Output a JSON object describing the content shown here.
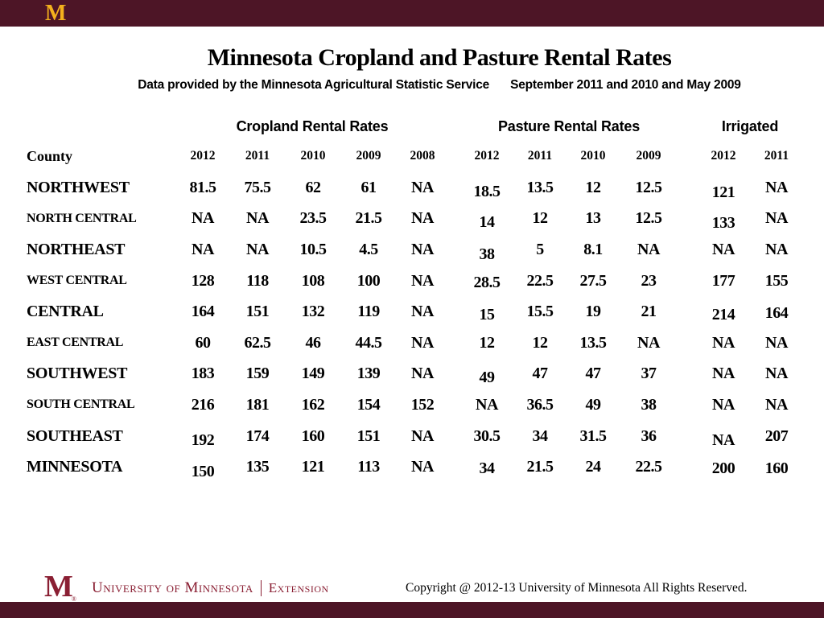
{
  "slide": {
    "title": "Minnesota Cropland and Pasture Rental Rates",
    "subtitle_left": "Data provided by the Minnesota Agricultural Statistic Service",
    "subtitle_right": "September 2011 and 2010 and May 2009"
  },
  "table": {
    "county_header": "County",
    "sections": [
      {
        "label": "Cropland Rental Rates",
        "years": [
          "2012",
          "2011",
          "2010",
          "2009",
          "2008"
        ]
      },
      {
        "label": "Pasture Rental Rates",
        "years": [
          "2012",
          "2011",
          "2010",
          "2009"
        ]
      },
      {
        "label": "Irrigated",
        "years": [
          "2012",
          "2011"
        ]
      }
    ],
    "rows": [
      {
        "county": "NORTHWEST",
        "size": "large",
        "cropland": [
          "81.5",
          "75.5",
          "62",
          "61",
          "NA"
        ],
        "pasture": [
          "18.5",
          "13.5",
          "12",
          "12.5"
        ],
        "irrigated": [
          "121",
          "NA"
        ]
      },
      {
        "county": "NORTH CENTRAL",
        "size": "small",
        "cropland": [
          "NA",
          "NA",
          "23.5",
          "21.5",
          "NA"
        ],
        "pasture": [
          "14",
          "12",
          "13",
          "12.5"
        ],
        "irrigated": [
          "133",
          "NA"
        ]
      },
      {
        "county": "NORTHEAST",
        "size": "large",
        "cropland": [
          "NA",
          "NA",
          "10.5",
          "4.5",
          "NA"
        ],
        "pasture": [
          "38",
          "5",
          "8.1",
          "NA"
        ],
        "irrigated": [
          "NA",
          "NA"
        ]
      },
      {
        "county": "WEST CENTRAL",
        "size": "small",
        "cropland": [
          "128",
          "118",
          "108",
          "100",
          "NA"
        ],
        "pasture": [
          "28.5",
          "22.5",
          "27.5",
          "23"
        ],
        "irrigated": [
          "177",
          "155"
        ]
      },
      {
        "county": "CENTRAL",
        "size": "large",
        "cropland": [
          "164",
          "151",
          "132",
          "119",
          "NA"
        ],
        "pasture": [
          "15",
          "15.5",
          "19",
          "21"
        ],
        "irrigated": [
          "214",
          "164"
        ]
      },
      {
        "county": "EAST CENTRAL",
        "size": "small",
        "cropland": [
          "60",
          "62.5",
          "46",
          "44.5",
          "NA"
        ],
        "pasture": [
          "12",
          "12",
          "13.5",
          "NA"
        ],
        "irrigated": [
          "NA",
          "NA"
        ]
      },
      {
        "county": "SOUTHWEST",
        "size": "large",
        "cropland": [
          "183",
          "159",
          "149",
          "139",
          "NA"
        ],
        "pasture": [
          "49",
          "47",
          "47",
          "37"
        ],
        "irrigated": [
          "NA",
          "NA"
        ]
      },
      {
        "county": "SOUTH CENTRAL",
        "size": "small",
        "cropland": [
          "216",
          "181",
          "162",
          "154",
          "152"
        ],
        "pasture": [
          "NA",
          "36.5",
          "49",
          "38"
        ],
        "irrigated": [
          "NA",
          "NA"
        ]
      },
      {
        "county": "SOUTHEAST",
        "size": "large",
        "cropland": [
          "192",
          "174",
          "160",
          "151",
          "NA"
        ],
        "pasture": [
          "30.5",
          "34",
          "31.5",
          "36"
        ],
        "irrigated": [
          "NA",
          "207"
        ]
      },
      {
        "county": "MINNESOTA",
        "size": "large",
        "cropland": [
          "150",
          "135",
          "121",
          "113",
          "NA"
        ],
        "pasture": [
          "34",
          "21.5",
          "24",
          "22.5"
        ],
        "irrigated": [
          "200",
          "160"
        ]
      }
    ]
  },
  "footer": {
    "wordmark_primary": "University of Minnesota",
    "wordmark_secondary": "Extension",
    "copyright": "Copyright @ 2012-13 University of Minnesota All Rights Reserved."
  },
  "branding": {
    "m_logo": "M",
    "colors": {
      "bar_maroon": "#4d1526",
      "logo_maroon": "#8a1f33",
      "logo_gold": "#f3b11d"
    }
  }
}
